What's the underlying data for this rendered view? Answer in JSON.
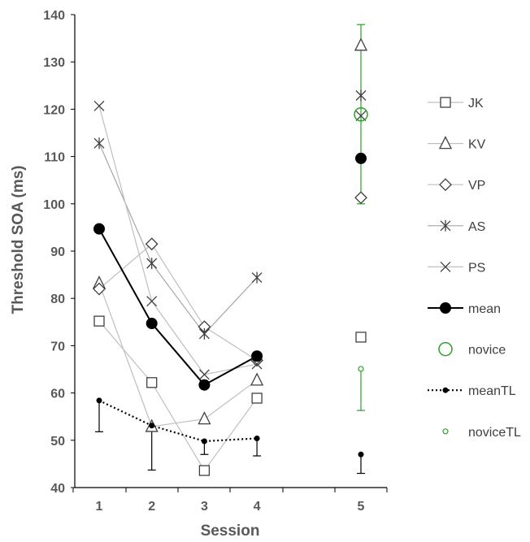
{
  "chart_data": {
    "type": "line",
    "xlabel": "Session",
    "ylabel": "Threshold SOA (ms)",
    "ylim": [
      40,
      140
    ],
    "yticks": [
      40,
      50,
      60,
      70,
      80,
      90,
      100,
      110,
      120,
      130,
      140
    ],
    "xticks": [
      1,
      2,
      3,
      4,
      5
    ],
    "xlim": [
      0.5,
      5.5
    ],
    "grid": false,
    "legend_position": "right",
    "series": [
      {
        "name": "JK",
        "marker": "square",
        "color": "#404040",
        "line_color": "#bfbfbf",
        "x": [
          1,
          2,
          3,
          4
        ],
        "y": [
          75.2,
          62.2,
          43.6,
          58.9
        ],
        "extra_points": [
          {
            "x": 5,
            "y": 71.8
          }
        ]
      },
      {
        "name": "KV",
        "marker": "triangle",
        "color": "#404040",
        "line_color": "#bfbfbf",
        "x": [
          1,
          2,
          3,
          4
        ],
        "y": [
          83.2,
          52.9,
          54.5,
          62.7
        ],
        "extra_points": [
          {
            "x": 5,
            "y": 133.5
          }
        ]
      },
      {
        "name": "VP",
        "marker": "diamond",
        "color": "#404040",
        "line_color": "#bfbfbf",
        "x": [
          1,
          2,
          3,
          4
        ],
        "y": [
          82.0,
          91.5,
          74.0,
          66.9
        ],
        "extra_points": [
          {
            "x": 5,
            "y": 101.3
          }
        ]
      },
      {
        "name": "AS",
        "marker": "asterisk",
        "color": "#404040",
        "line_color": "#a6a6a6",
        "x": [
          1,
          2,
          3,
          4
        ],
        "y": [
          112.8,
          87.4,
          72.5,
          84.4
        ],
        "extra_points": [
          {
            "x": 5,
            "y": 122.9
          }
        ]
      },
      {
        "name": "PS",
        "marker": "x",
        "color": "#404040",
        "line_color": "#bfbfbf",
        "x": [
          1,
          2,
          3,
          4
        ],
        "y": [
          120.7,
          79.4,
          63.9,
          66.1
        ],
        "extra_points": [
          {
            "x": 5,
            "y": 118.6
          }
        ]
      },
      {
        "name": "mean",
        "marker": "filled-circle-large",
        "color": "#000000",
        "line_color": "#000000",
        "line_style": "solid",
        "x": [
          1,
          2,
          3,
          4
        ],
        "y": [
          94.7,
          74.7,
          61.7,
          67.8
        ],
        "extra_points": [
          {
            "x": 5,
            "y": 109.6
          }
        ]
      },
      {
        "name": "novice",
        "marker": "open-circle-large",
        "color": "#2ca02c",
        "line_color": "none",
        "x": [
          5
        ],
        "y": [
          118.9
        ],
        "error": [
          {
            "x": 5,
            "low": 100.0,
            "high": 137.9
          }
        ]
      },
      {
        "name": "meanTL",
        "marker": "filled-circle-small",
        "color": "#000000",
        "line_color": "#000000",
        "line_style": "dotted",
        "x": [
          1,
          2,
          3,
          4
        ],
        "y": [
          58.4,
          53.1,
          49.8,
          50.4
        ],
        "extra_points": [
          {
            "x": 5,
            "y": 47.0
          }
        ],
        "error": [
          {
            "x": 1,
            "low": 51.8,
            "high": 58.4
          },
          {
            "x": 2,
            "low": 43.7,
            "high": 53.1
          },
          {
            "x": 3,
            "low": 47.0,
            "high": 49.8
          },
          {
            "x": 4,
            "low": 46.7,
            "high": 50.4
          },
          {
            "x": 5,
            "low": 43.0,
            "high": 47.0
          }
        ]
      },
      {
        "name": "noviceTL",
        "marker": "open-circle-small",
        "color": "#2ca02c",
        "line_color": "none",
        "x": [
          5
        ],
        "y": [
          65.1
        ],
        "error": [
          {
            "x": 5,
            "low": 56.3,
            "high": 65.1
          }
        ]
      }
    ]
  }
}
